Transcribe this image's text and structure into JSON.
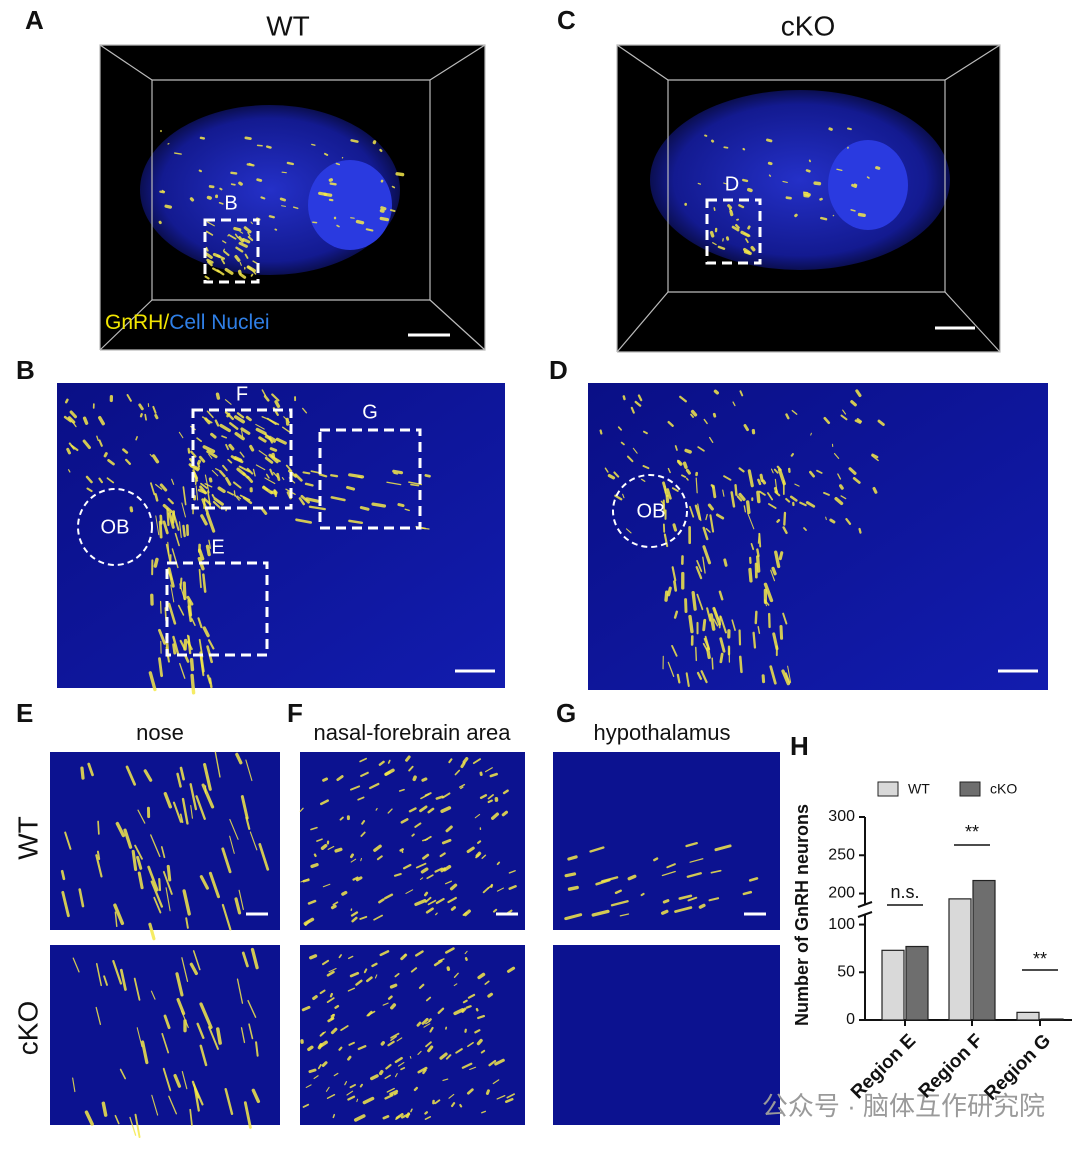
{
  "panel_labels": [
    "A",
    "B",
    "C",
    "D",
    "E",
    "F",
    "G",
    "H"
  ],
  "top": {
    "wt_title": "WT",
    "cko_title": "cKO",
    "legend_gnrh": "GnRH",
    "legend_slash": "/",
    "legend_nuclei": "Cell Nuclei",
    "box_b": "B",
    "box_d": "D"
  },
  "middle": {
    "box_f": "F",
    "box_g": "G",
    "box_e": "E",
    "ob_left": "OB",
    "ob_right": "OB"
  },
  "bottom": {
    "titles": [
      "nose",
      "nasal-forebrain area",
      "hypothalamus"
    ],
    "rows": [
      "WT",
      "cKO"
    ]
  },
  "watermark": "公众号 · 脑体互作研究院",
  "chart_data": {
    "type": "bar",
    "ylabel": "Number of GnRH neurons",
    "categories": [
      "Region E",
      "Region F",
      "Region G"
    ],
    "series": [
      {
        "name": "WT",
        "color": "#d9d9d9",
        "values": [
          73,
          193,
          8
        ]
      },
      {
        "name": "cKO",
        "color": "#6e6e6e",
        "values": [
          77,
          217,
          1
        ]
      }
    ],
    "ylim": [
      0,
      300
    ],
    "yticks": [
      0,
      50,
      100,
      200,
      250,
      300
    ],
    "y_break": [
      110,
      185
    ],
    "annotations": [
      "n.s.",
      "**",
      "**"
    ]
  }
}
